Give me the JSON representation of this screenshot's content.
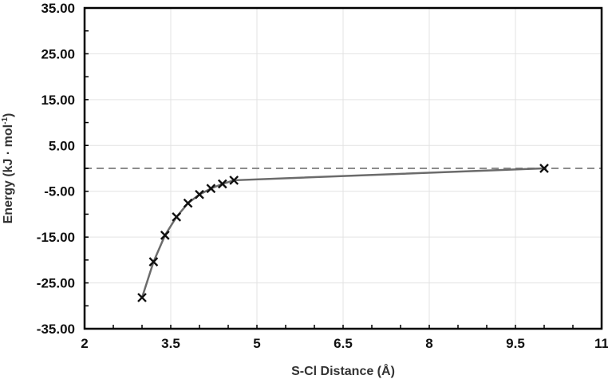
{
  "chart_data": {
    "type": "scatter",
    "title": "",
    "xlabel": "S-Cl Distance (Å)",
    "ylabel_main": "Energy (kJ · mol",
    "ylabel_sup": "-1",
    "ylabel_close": ")",
    "xlim": [
      2,
      11
    ],
    "ylim": [
      -35,
      35
    ],
    "x_ticks": [
      2,
      3.5,
      5,
      6.5,
      8,
      9.5,
      11
    ],
    "x_tick_labels": [
      "2",
      "3.5",
      "5",
      "6.5",
      "8",
      "9.5",
      "11"
    ],
    "y_ticks": [
      35,
      25,
      15,
      5,
      -5,
      -15,
      -25,
      -35
    ],
    "y_tick_labels": [
      "35.00",
      "25.00",
      "15.00",
      "5.00",
      "-5.00",
      "-15.00",
      "-25.00",
      "-35.00"
    ],
    "reference_line_y": 0,
    "grid": true,
    "series": [
      {
        "name": "Energy",
        "x": [
          3.0,
          3.2,
          3.4,
          3.6,
          3.8,
          4.0,
          4.2,
          4.4,
          4.6,
          10.0
        ],
        "y": [
          -28.2,
          -20.4,
          -14.6,
          -10.6,
          -7.6,
          -5.7,
          -4.4,
          -3.4,
          -2.6,
          0.0
        ]
      }
    ]
  }
}
